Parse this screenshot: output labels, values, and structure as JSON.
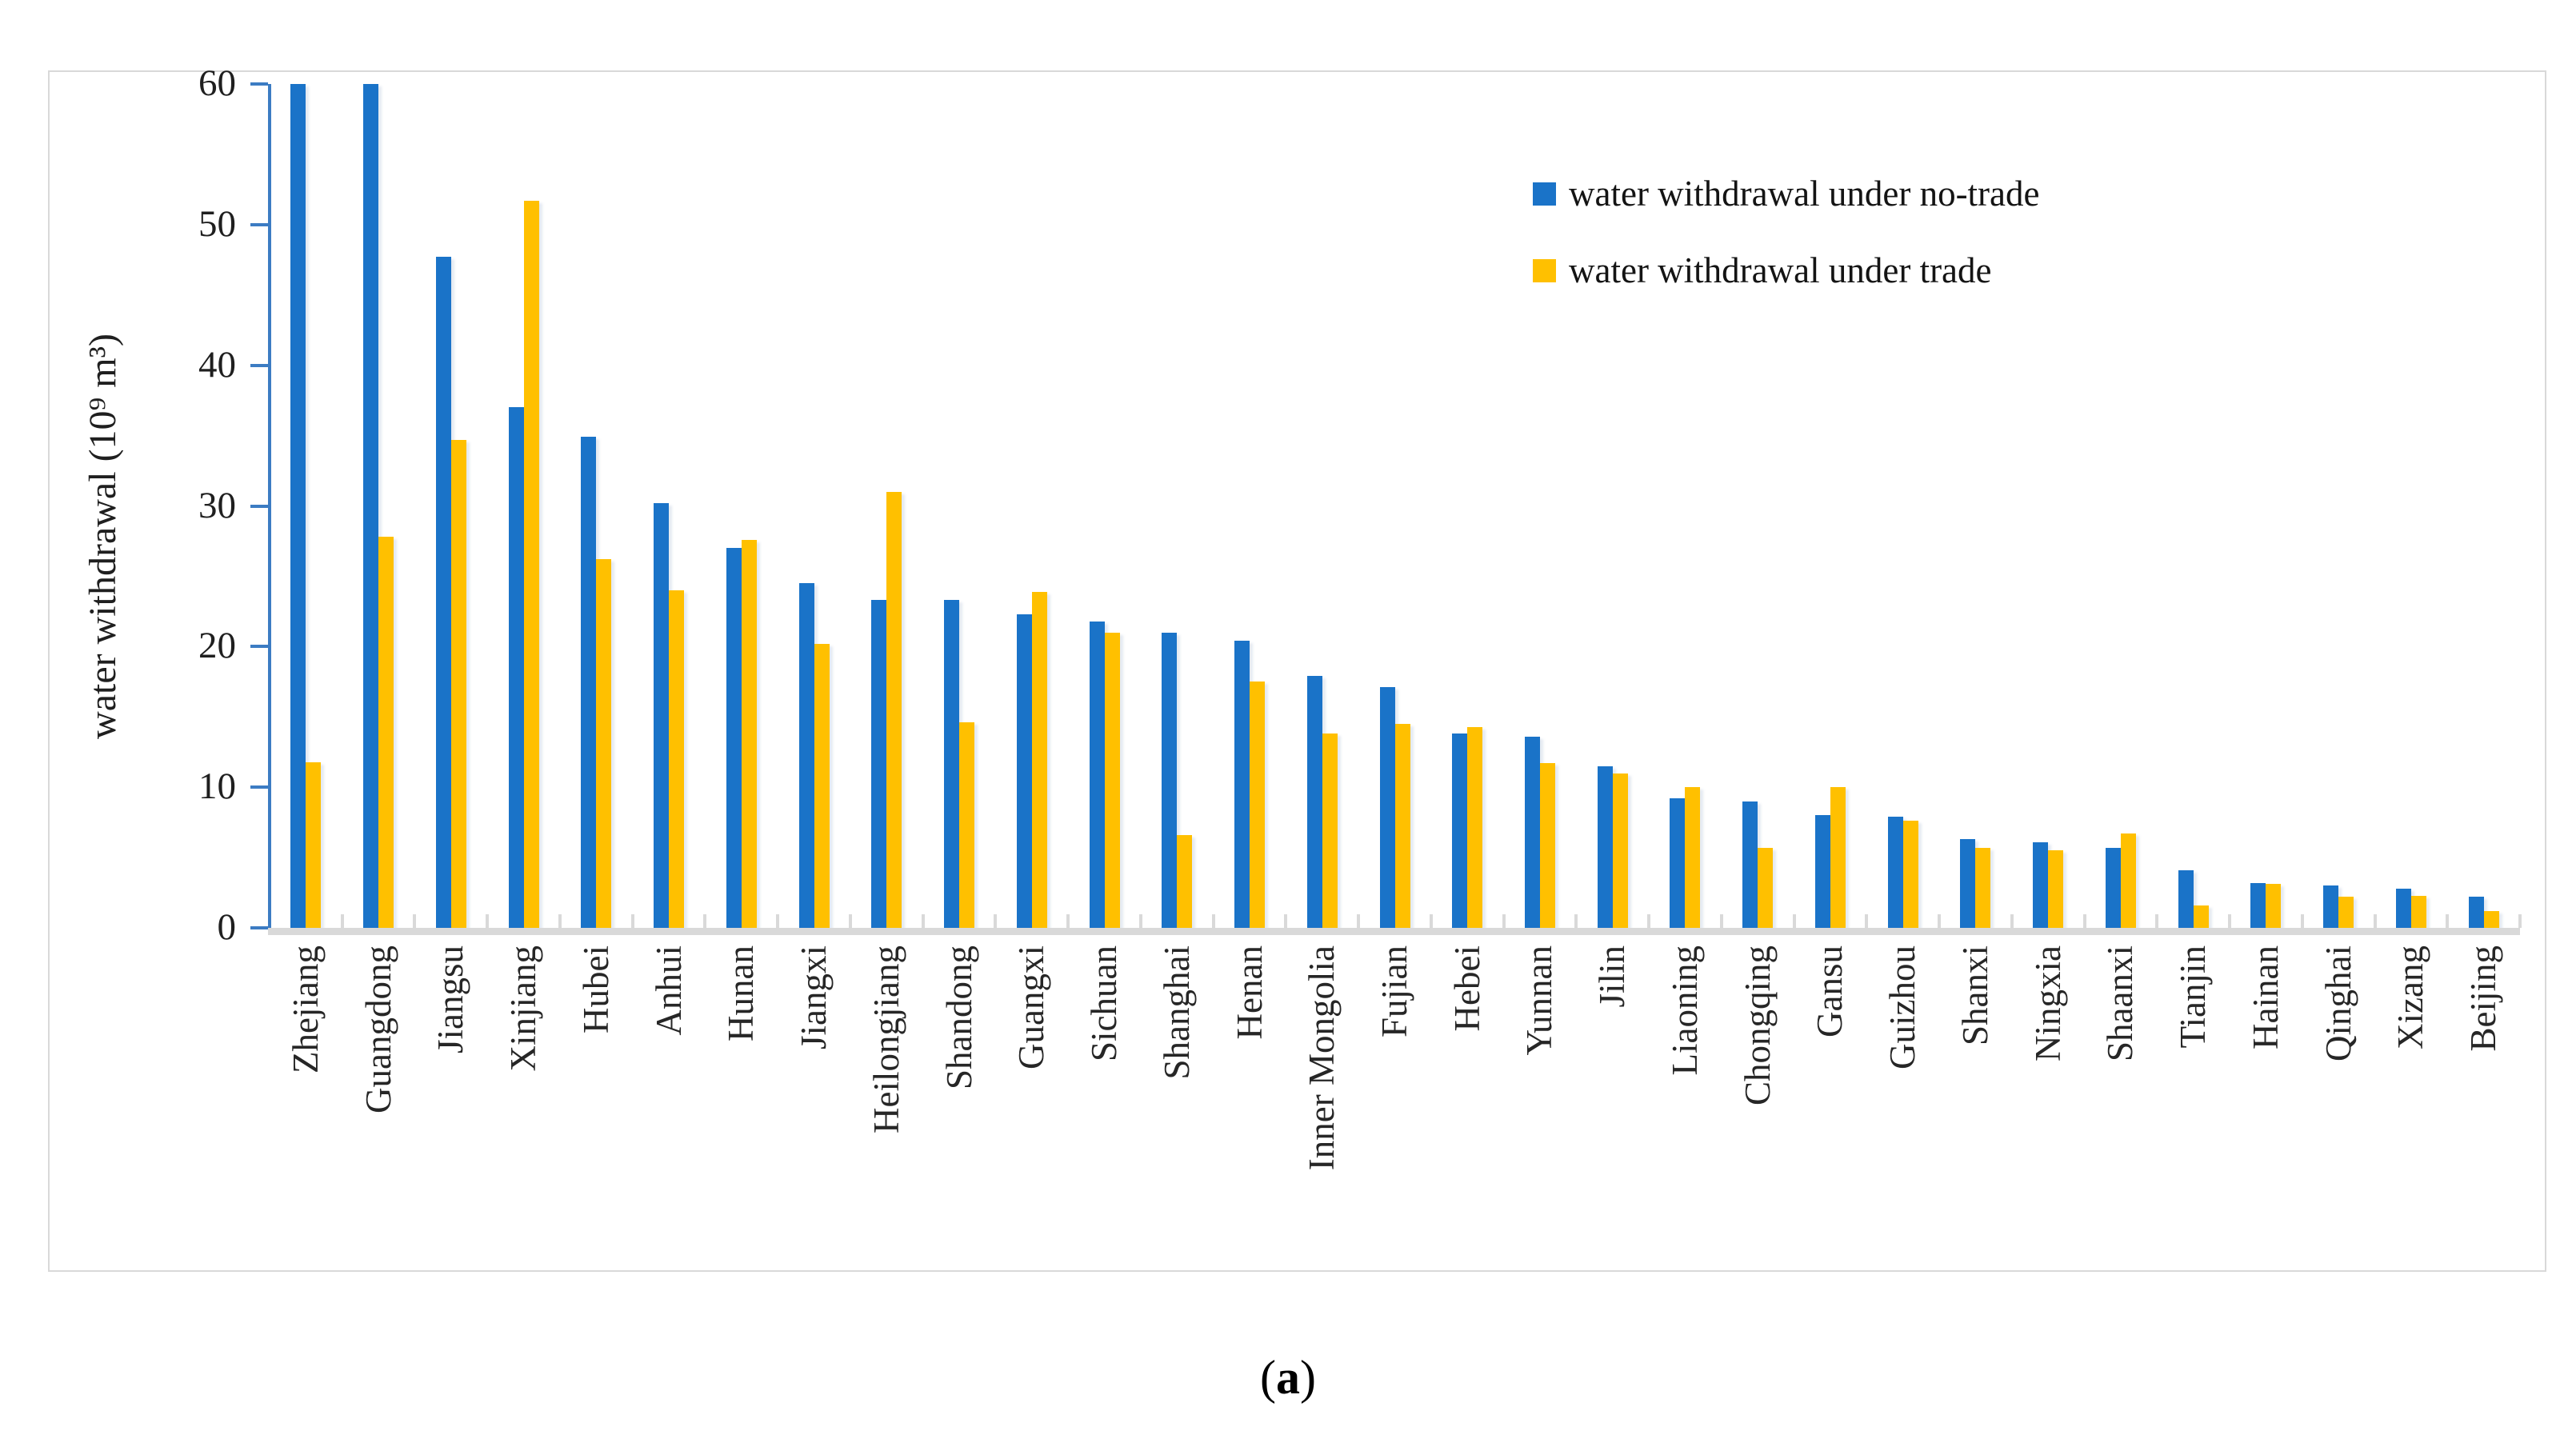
{
  "figure": {
    "caption": {
      "open": "(",
      "letter": "a",
      "close": ")"
    }
  },
  "chart_data": {
    "type": "bar",
    "title": "",
    "xlabel": "",
    "ylabel": "water withdrawal  (10⁹ m³)",
    "ylim": [
      0,
      60
    ],
    "yticks": [
      60,
      50,
      40,
      30,
      20,
      10,
      0
    ],
    "grid": false,
    "legend_position": "upper-right-inside",
    "categories": [
      "Zhejiang",
      "Guangdong",
      "Jiangsu",
      "Xinjiang",
      "Hubei",
      "Anhui",
      "Hunan",
      "Jiangxi",
      "Heilongjiang",
      "Shandong",
      "Guangxi",
      "Sichuan",
      "Shanghai",
      "Henan",
      "Inner Mongolia",
      "Fujian",
      "Hebei",
      "Yunnan",
      "Jilin",
      "Liaoning",
      "Chongqing",
      "Gansu",
      "Guizhou",
      "Shanxi",
      "Ningxia",
      "Shaanxi",
      "Tianjin",
      "Hainan",
      "Qinghai",
      "Xizang",
      "Beijing"
    ],
    "series": [
      {
        "name": "water withdrawal under no-trade",
        "color": "#1a73c8",
        "values": [
          60,
          60,
          47.7,
          37,
          34.9,
          30.2,
          27,
          24.5,
          23.3,
          23.3,
          22.3,
          21.8,
          21,
          20.4,
          17.9,
          17.1,
          13.8,
          13.6,
          11.5,
          9.2,
          9,
          8,
          7.9,
          6.3,
          6.1,
          5.7,
          4.1,
          3.2,
          3,
          2.8,
          2.2
        ]
      },
      {
        "name": "water withdrawal under trade",
        "color": "#ffc000",
        "values": [
          11.8,
          27.8,
          34.7,
          51.7,
          26.2,
          24,
          27.6,
          20.2,
          31,
          14.6,
          23.9,
          21,
          6.6,
          17.5,
          13.8,
          14.5,
          14.3,
          11.7,
          11,
          10,
          5.7,
          10,
          7.6,
          5.7,
          5.5,
          6.7,
          1.6,
          3.1,
          2.2,
          2.3,
          1.2
        ]
      }
    ]
  },
  "colors": {
    "axis": "#3c7cc3",
    "baseline": "#d9d9d9",
    "frame": "#d9d9d9",
    "bar_blue": "#1a73c8",
    "bar_yellow": "#ffc000"
  }
}
